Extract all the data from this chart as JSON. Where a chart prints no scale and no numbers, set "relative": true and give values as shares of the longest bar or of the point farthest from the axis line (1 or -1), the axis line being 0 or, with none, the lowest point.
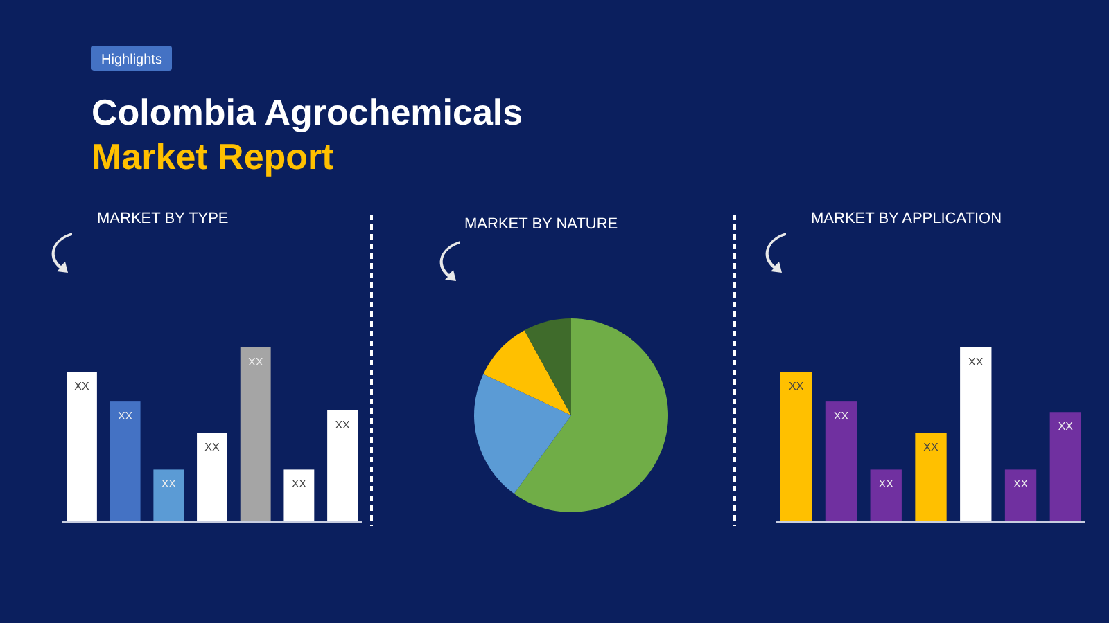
{
  "chart_data": [
    {
      "type": "other",
      "title": "Colombia Agrochemicals",
      "subtitle": "Market Report",
      "annotations": [
        "Highlights"
      ]
    },
    {
      "type": "bar",
      "title": "MARKET BY TYPE",
      "categories": [
        null,
        null,
        null,
        null,
        null,
        null,
        null
      ],
      "relative": true,
      "values": [
        0.86,
        0.69,
        0.3,
        0.51,
        1,
        0.3,
        0.64
      ],
      "colors": [
        "#ffffff",
        "#4472c4",
        "#5b9bd5",
        "#ffffff",
        "#a5a5a5",
        "#ffffff",
        "#ffffff"
      ],
      "annotations": [
        "XX",
        "XX",
        "XX",
        "XX",
        "XX",
        "XX",
        "XX"
      ]
    },
    {
      "type": "pie",
      "title": "MARKET BY NATURE",
      "categories": [
        null,
        null,
        null,
        null
      ],
      "values": [
        60,
        22,
        10,
        8
      ],
      "colors": [
        "#70ad47",
        "#5b9bd5",
        "#ffc000",
        "#3f6b2b"
      ]
    },
    {
      "type": "bar",
      "title": "MARKET BY APPLICATION",
      "categories": [
        null,
        null,
        null,
        null,
        null,
        null,
        null
      ],
      "relative": true,
      "values": [
        0.86,
        0.69,
        0.3,
        0.51,
        1,
        0.3,
        0.63
      ],
      "colors": [
        "#ffc000",
        "#7030a0",
        "#7030a0",
        "#ffc000",
        "#ffffff",
        "#7030a0",
        "#7030a0"
      ],
      "annotations": [
        "XX",
        "XX",
        "XX",
        "XX",
        "XX",
        "XX",
        "XX"
      ]
    }
  ]
}
